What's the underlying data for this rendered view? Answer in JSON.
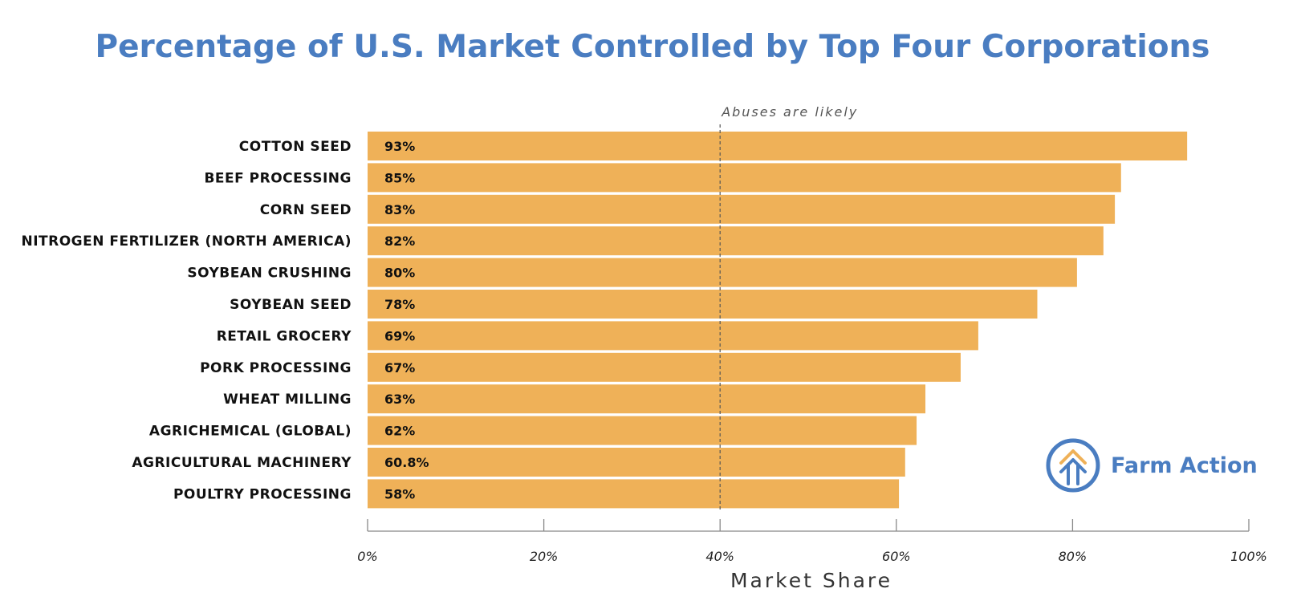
{
  "chart_data": {
    "type": "bar",
    "orientation": "horizontal",
    "title": "Percentage of U.S. Market Controlled by Top Four Corporations",
    "xlabel": "Market Share",
    "ylabel": "",
    "xlim": [
      0,
      100
    ],
    "ticks": [
      0,
      20,
      40,
      60,
      80,
      100
    ],
    "tick_labels": [
      "0%",
      "20%",
      "40%",
      "60%",
      "80%",
      "100%"
    ],
    "categories": [
      "COTTON SEED",
      "BEEF PROCESSING",
      "CORN SEED",
      "NITROGEN FERTILIZER (NORTH AMERICA)",
      "SOYBEAN CRUSHING",
      "SOYBEAN SEED",
      "RETAIL GROCERY",
      "PORK PROCESSING",
      "WHEAT MILLING",
      "AGRICHEMICAL (GLOBAL)",
      "AGRICULTURAL MACHINERY",
      "POULTRY PROCESSING"
    ],
    "values": [
      93,
      85,
      83,
      82,
      80,
      78,
      69,
      67,
      63,
      62,
      60.8,
      58
    ],
    "value_labels": [
      "93%",
      "85%",
      "83%",
      "82%",
      "80%",
      "78%",
      "69%",
      "67%",
      "63%",
      "62%",
      "60.8%",
      "58%"
    ],
    "bar_extent": [
      93,
      85.5,
      84.8,
      83.5,
      80.5,
      76,
      69.3,
      67.3,
      63.3,
      62.3,
      61,
      60.3
    ],
    "reference_line": {
      "value": 40,
      "label": "Abuses are likely"
    },
    "grid": false,
    "legend": "none"
  },
  "logo": {
    "text": "Farm Action"
  },
  "colors": {
    "title": "#4a7dc1",
    "bar": "#efb158",
    "logo_blue": "#4a7dc1",
    "logo_orange": "#efb158"
  }
}
